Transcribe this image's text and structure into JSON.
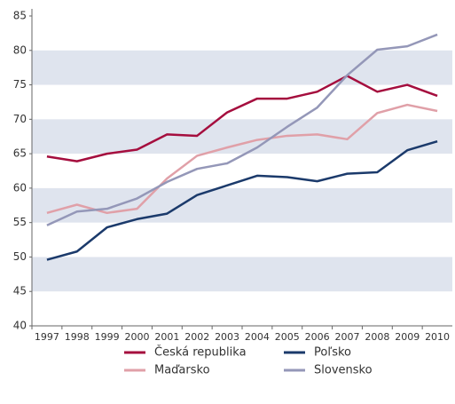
{
  "chart_data": {
    "type": "line",
    "categories": [
      "1997",
      "1998",
      "1999",
      "2000",
      "2001",
      "2002",
      "2003",
      "2004",
      "2005",
      "2006",
      "2007",
      "2008",
      "2009",
      "2010"
    ],
    "series": [
      {
        "name": "Česká republika",
        "color": "#a50e3e",
        "values": [
          64.6,
          63.9,
          65.0,
          65.6,
          67.8,
          67.6,
          71.0,
          73.0,
          73.0,
          74.0,
          76.3,
          74.0,
          75.0,
          73.4
        ]
      },
      {
        "name": "Maďarsko",
        "color": "#e0a0a8",
        "values": [
          56.4,
          57.6,
          56.4,
          57.0,
          61.4,
          64.7,
          65.9,
          67.0,
          67.6,
          67.8,
          67.1,
          70.9,
          72.1,
          71.2
        ]
      },
      {
        "name": "Poľsko",
        "color": "#1b3a6b",
        "values": [
          49.6,
          50.8,
          54.3,
          55.5,
          56.3,
          59.0,
          60.4,
          61.8,
          61.6,
          61.0,
          62.1,
          62.3,
          65.5,
          66.8
        ]
      },
      {
        "name": "Slovensko",
        "color": "#9497b8",
        "values": [
          54.6,
          56.6,
          57.0,
          58.5,
          60.9,
          62.8,
          63.6,
          65.9,
          68.9,
          71.7,
          76.4,
          80.1,
          80.6,
          82.3
        ]
      }
    ],
    "ylim": [
      40,
      85
    ],
    "yticks": [
      40,
      45,
      50,
      55,
      60,
      65,
      70,
      75,
      80,
      85
    ],
    "grid": "bands",
    "band_color": "#dfe4ee"
  }
}
